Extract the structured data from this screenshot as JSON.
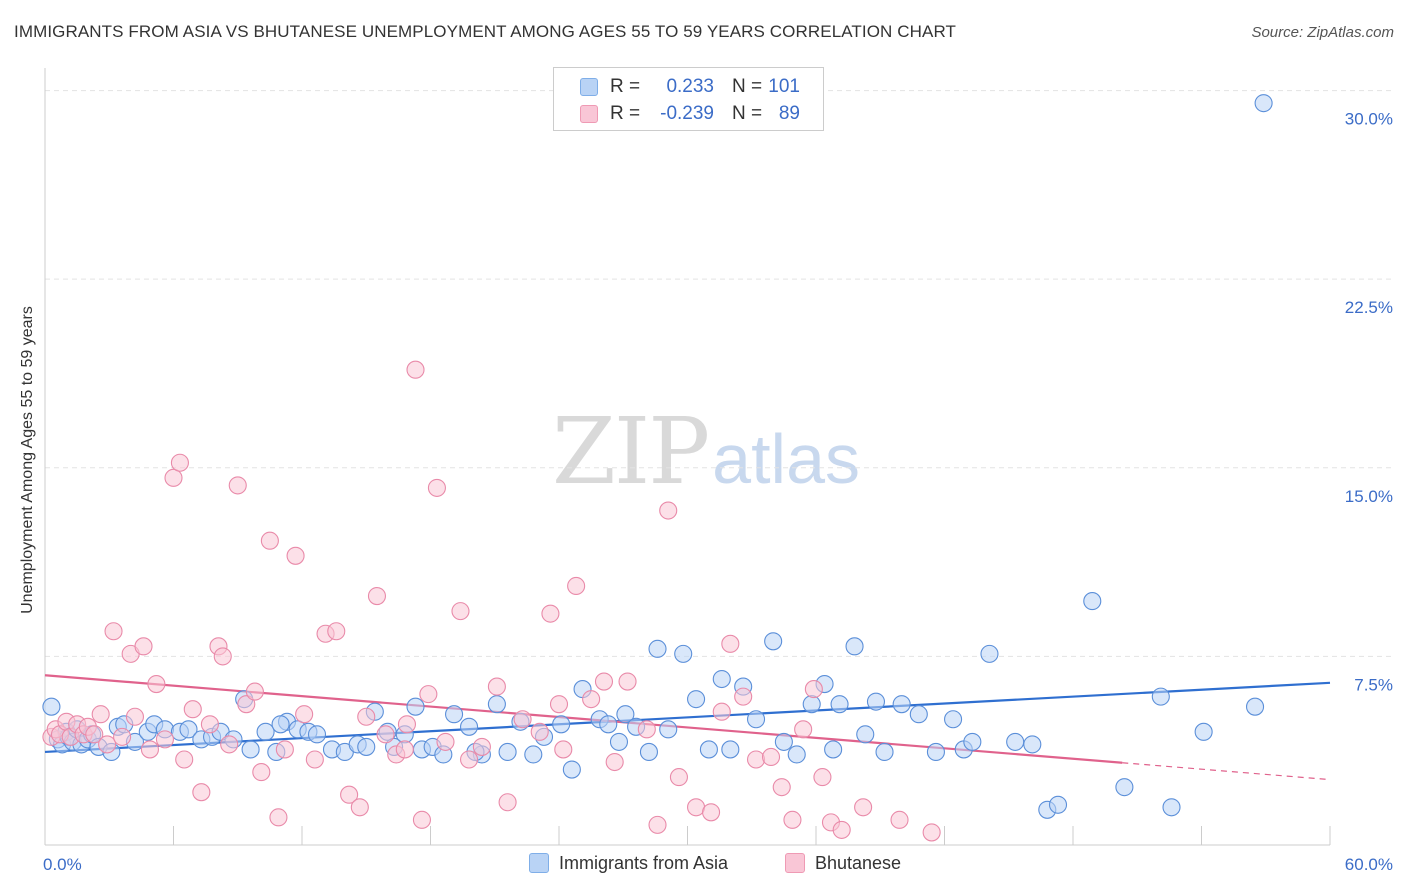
{
  "header": {
    "title": "IMMIGRANTS FROM ASIA VS BHUTANESE UNEMPLOYMENT AMONG AGES 55 TO 59 YEARS CORRELATION CHART",
    "source": "Source: ZipAtlas.com"
  },
  "watermark": {
    "zip": "ZIP",
    "atlas": "atlas"
  },
  "legend": {
    "r_label": "R =",
    "n_label": "N =",
    "rows": [
      {
        "name": "Immigrants from Asia",
        "r": "0.233",
        "n": "101",
        "color": "#7faee8",
        "fill": "#b9d3f5"
      },
      {
        "name": "Bhutanese",
        "r": "-0.239",
        "n": "89",
        "color": "#ef9ab4",
        "fill": "#f9c6d6"
      }
    ]
  },
  "chart_data": {
    "type": "scatter",
    "title": "IMMIGRANTS FROM ASIA VS BHUTANESE UNEMPLOYMENT AMONG AGES 55 TO 59 YEARS CORRELATION CHART",
    "xlabel": "",
    "ylabel": "Unemployment Among Ages 55 to 59 years",
    "xlim": [
      0,
      60
    ],
    "ylim": [
      0,
      30.5
    ],
    "x_tick_labels": [
      {
        "value": 0,
        "label": "0.0%"
      },
      {
        "value": 60,
        "label": "60.0%"
      }
    ],
    "y_tick_labels": [
      {
        "value": 7.5,
        "label": "7.5%"
      },
      {
        "value": 15.0,
        "label": "15.0%"
      },
      {
        "value": 22.5,
        "label": "22.5%"
      },
      {
        "value": 30.0,
        "label": "30.0%"
      }
    ],
    "grid": true,
    "series": [
      {
        "name": "Immigrants from Asia",
        "color": "#5b8fd9",
        "fill": "#b9d3f5",
        "trend_color": "#2f6fd0",
        "trend": {
          "x0": 0,
          "y0": 3.7,
          "x1": 60,
          "y1": 6.45,
          "dash_from": null
        },
        "points": [
          [
            0.3,
            5.5
          ],
          [
            0.6,
            4.2
          ],
          [
            0.8,
            4.0
          ],
          [
            1.0,
            4.5
          ],
          [
            1.1,
            4.3
          ],
          [
            1.3,
            4.1
          ],
          [
            1.5,
            4.6
          ],
          [
            1.7,
            4.0
          ],
          [
            2.0,
            4.2
          ],
          [
            2.2,
            4.4
          ],
          [
            2.5,
            3.9
          ],
          [
            3.1,
            3.7
          ],
          [
            3.4,
            4.7
          ],
          [
            3.7,
            4.8
          ],
          [
            4.2,
            4.1
          ],
          [
            4.8,
            4.5
          ],
          [
            5.1,
            4.8
          ],
          [
            5.6,
            4.6
          ],
          [
            6.3,
            4.5
          ],
          [
            6.7,
            4.6
          ],
          [
            7.3,
            4.2
          ],
          [
            7.8,
            4.3
          ],
          [
            8.2,
            4.5
          ],
          [
            8.8,
            4.2
          ],
          [
            9.3,
            5.8
          ],
          [
            9.6,
            3.8
          ],
          [
            10.3,
            4.5
          ],
          [
            10.8,
            3.7
          ],
          [
            11.3,
            4.9
          ],
          [
            11.8,
            4.6
          ],
          [
            12.3,
            4.5
          ],
          [
            12.7,
            4.4
          ],
          [
            13.4,
            3.8
          ],
          [
            14.0,
            3.7
          ],
          [
            14.6,
            4.0
          ],
          [
            15.0,
            3.9
          ],
          [
            15.4,
            5.3
          ],
          [
            16.0,
            4.5
          ],
          [
            16.3,
            3.9
          ],
          [
            16.8,
            4.4
          ],
          [
            17.3,
            5.5
          ],
          [
            17.6,
            3.8
          ],
          [
            18.1,
            3.9
          ],
          [
            18.6,
            3.6
          ],
          [
            19.1,
            5.2
          ],
          [
            19.8,
            4.7
          ],
          [
            20.4,
            3.6
          ],
          [
            21.1,
            5.6
          ],
          [
            21.6,
            3.7
          ],
          [
            22.2,
            4.9
          ],
          [
            22.8,
            3.6
          ],
          [
            23.3,
            4.3
          ],
          [
            24.1,
            4.8
          ],
          [
            24.6,
            3.0
          ],
          [
            25.1,
            6.2
          ],
          [
            25.9,
            5.0
          ],
          [
            26.3,
            4.8
          ],
          [
            27.1,
            5.2
          ],
          [
            27.6,
            4.7
          ],
          [
            28.2,
            3.7
          ],
          [
            28.6,
            7.8
          ],
          [
            29.1,
            4.6
          ],
          [
            29.8,
            7.6
          ],
          [
            30.4,
            5.8
          ],
          [
            31.0,
            3.8
          ],
          [
            31.6,
            6.6
          ],
          [
            32.0,
            3.8
          ],
          [
            32.6,
            6.3
          ],
          [
            33.2,
            5.0
          ],
          [
            34.0,
            8.1
          ],
          [
            34.5,
            4.1
          ],
          [
            35.1,
            3.6
          ],
          [
            35.8,
            5.6
          ],
          [
            36.4,
            6.4
          ],
          [
            37.1,
            5.6
          ],
          [
            37.8,
            7.9
          ],
          [
            38.3,
            4.4
          ],
          [
            39.2,
            3.7
          ],
          [
            40.0,
            5.6
          ],
          [
            40.8,
            5.2
          ],
          [
            41.6,
            3.7
          ],
          [
            42.4,
            5.0
          ],
          [
            42.9,
            3.8
          ],
          [
            44.1,
            7.6
          ],
          [
            45.3,
            4.1
          ],
          [
            46.1,
            4.0
          ],
          [
            46.8,
            1.4
          ],
          [
            47.3,
            1.6
          ],
          [
            48.9,
            9.7
          ],
          [
            50.4,
            2.3
          ],
          [
            52.1,
            5.9
          ],
          [
            52.6,
            1.5
          ],
          [
            54.1,
            4.5
          ],
          [
            56.5,
            5.5
          ],
          [
            56.9,
            29.5
          ],
          [
            43.3,
            4.1
          ],
          [
            11.0,
            4.8
          ],
          [
            20.1,
            3.7
          ],
          [
            26.8,
            4.1
          ],
          [
            36.8,
            3.8
          ],
          [
            38.8,
            5.7
          ]
        ]
      },
      {
        "name": "Bhutanese",
        "color": "#e98aa9",
        "fill": "#f9c6d6",
        "trend_color": "#e0628c",
        "trend": {
          "x0": 0,
          "y0": 6.75,
          "x1": 60,
          "y1": 2.6,
          "dash_from": 50.3
        },
        "points": [
          [
            0.3,
            4.3
          ],
          [
            0.5,
            4.6
          ],
          [
            0.7,
            4.4
          ],
          [
            1.0,
            4.9
          ],
          [
            1.2,
            4.3
          ],
          [
            1.5,
            4.8
          ],
          [
            1.8,
            4.4
          ],
          [
            2.0,
            4.7
          ],
          [
            2.3,
            4.4
          ],
          [
            2.6,
            5.2
          ],
          [
            2.9,
            4.0
          ],
          [
            3.2,
            8.5
          ],
          [
            3.6,
            4.3
          ],
          [
            4.0,
            7.6
          ],
          [
            4.2,
            5.1
          ],
          [
            4.6,
            7.9
          ],
          [
            4.9,
            3.8
          ],
          [
            5.2,
            6.4
          ],
          [
            5.6,
            4.2
          ],
          [
            6.0,
            14.6
          ],
          [
            6.3,
            15.2
          ],
          [
            6.5,
            3.4
          ],
          [
            6.9,
            5.4
          ],
          [
            7.3,
            2.1
          ],
          [
            7.7,
            4.8
          ],
          [
            8.1,
            7.9
          ],
          [
            8.3,
            7.5
          ],
          [
            8.6,
            4.0
          ],
          [
            9.0,
            14.3
          ],
          [
            9.4,
            5.6
          ],
          [
            10.1,
            2.9
          ],
          [
            10.5,
            12.1
          ],
          [
            10.9,
            1.1
          ],
          [
            11.2,
            3.8
          ],
          [
            11.7,
            11.5
          ],
          [
            12.1,
            5.2
          ],
          [
            12.6,
            3.4
          ],
          [
            13.1,
            8.4
          ],
          [
            13.6,
            8.5
          ],
          [
            14.2,
            2.0
          ],
          [
            14.7,
            1.5
          ],
          [
            15.0,
            5.1
          ],
          [
            15.5,
            9.9
          ],
          [
            15.9,
            4.4
          ],
          [
            16.4,
            3.6
          ],
          [
            16.8,
            3.8
          ],
          [
            17.3,
            18.9
          ],
          [
            17.6,
            1.0
          ],
          [
            17.9,
            6.0
          ],
          [
            18.3,
            14.2
          ],
          [
            18.7,
            4.1
          ],
          [
            19.4,
            9.3
          ],
          [
            19.8,
            3.4
          ],
          [
            20.4,
            3.9
          ],
          [
            21.1,
            6.3
          ],
          [
            21.6,
            1.7
          ],
          [
            22.3,
            5.0
          ],
          [
            23.1,
            4.5
          ],
          [
            23.6,
            9.2
          ],
          [
            24.2,
            3.8
          ],
          [
            24.8,
            10.3
          ],
          [
            25.5,
            5.8
          ],
          [
            26.1,
            6.5
          ],
          [
            26.6,
            3.3
          ],
          [
            27.2,
            6.5
          ],
          [
            28.1,
            4.6
          ],
          [
            28.6,
            0.8
          ],
          [
            29.1,
            13.3
          ],
          [
            29.6,
            2.7
          ],
          [
            30.4,
            1.5
          ],
          [
            31.1,
            1.3
          ],
          [
            31.6,
            5.3
          ],
          [
            32.0,
            8.0
          ],
          [
            32.6,
            5.9
          ],
          [
            33.2,
            3.4
          ],
          [
            33.9,
            3.5
          ],
          [
            34.4,
            2.3
          ],
          [
            34.9,
            1.0
          ],
          [
            35.4,
            4.6
          ],
          [
            35.9,
            6.2
          ],
          [
            36.3,
            2.7
          ],
          [
            36.7,
            0.9
          ],
          [
            37.2,
            0.6
          ],
          [
            38.2,
            1.5
          ],
          [
            39.9,
            1.0
          ],
          [
            41.4,
            0.5
          ],
          [
            9.8,
            6.1
          ],
          [
            16.9,
            4.8
          ],
          [
            24.0,
            5.6
          ]
        ]
      }
    ]
  }
}
